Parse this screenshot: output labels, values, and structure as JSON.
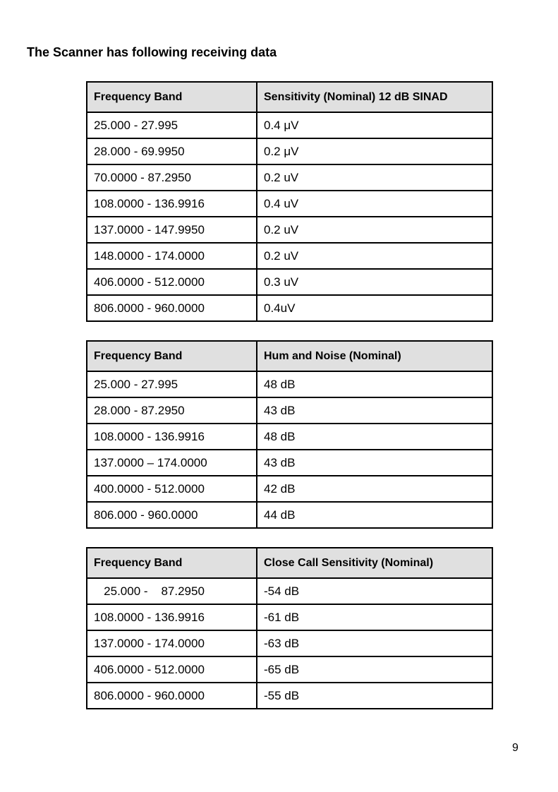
{
  "page": {
    "title": "The Scanner has following receiving data",
    "page_number": "9"
  },
  "colors": {
    "header_bg": "#e0e0e0",
    "border": "#000000",
    "text": "#000000"
  },
  "tables": [
    {
      "name": "sensitivity",
      "headers": [
        "Frequency Band",
        "Sensitivity (Nominal) 12 dB SINAD"
      ],
      "rows": [
        [
          "25.000 - 27.995",
          "0.4 μV"
        ],
        [
          "28.000 - 69.9950",
          "0.2 μV"
        ],
        [
          "70.0000 - 87.2950",
          "0.2 uV"
        ],
        [
          "108.0000 - 136.9916",
          "0.4 uV"
        ],
        [
          "137.0000 - 147.9950",
          "0.2 uV"
        ],
        [
          "148.0000 - 174.0000",
          "0.2 uV"
        ],
        [
          "406.0000 - 512.0000",
          "0.3 uV"
        ],
        [
          "806.0000 - 960.0000",
          "0.4uV"
        ]
      ]
    },
    {
      "name": "hum-and-noise",
      "headers": [
        "Frequency Band",
        "Hum and Noise (Nominal)"
      ],
      "rows": [
        [
          "25.000 - 27.995",
          "48 dB"
        ],
        [
          "28.000 - 87.2950",
          "43 dB"
        ],
        [
          "108.0000 - 136.9916",
          "48 dB"
        ],
        [
          "137.0000 – 174.0000",
          "43 dB"
        ],
        [
          "400.0000 - 512.0000",
          "42 dB"
        ],
        [
          "806.000 - 960.0000",
          "44 dB"
        ]
      ]
    },
    {
      "name": "close-call-sensitivity",
      "headers": [
        "Frequency Band",
        "Close Call Sensitivity (Nominal)"
      ],
      "rows": [
        [
          "   25.000 -    87.2950",
          "-54 dB"
        ],
        [
          "108.0000 - 136.9916",
          "-61 dB"
        ],
        [
          "137.0000 - 174.0000",
          "-63 dB"
        ],
        [
          "406.0000 - 512.0000",
          "-65 dB"
        ],
        [
          "806.0000 - 960.0000",
          "-55 dB"
        ]
      ]
    }
  ]
}
